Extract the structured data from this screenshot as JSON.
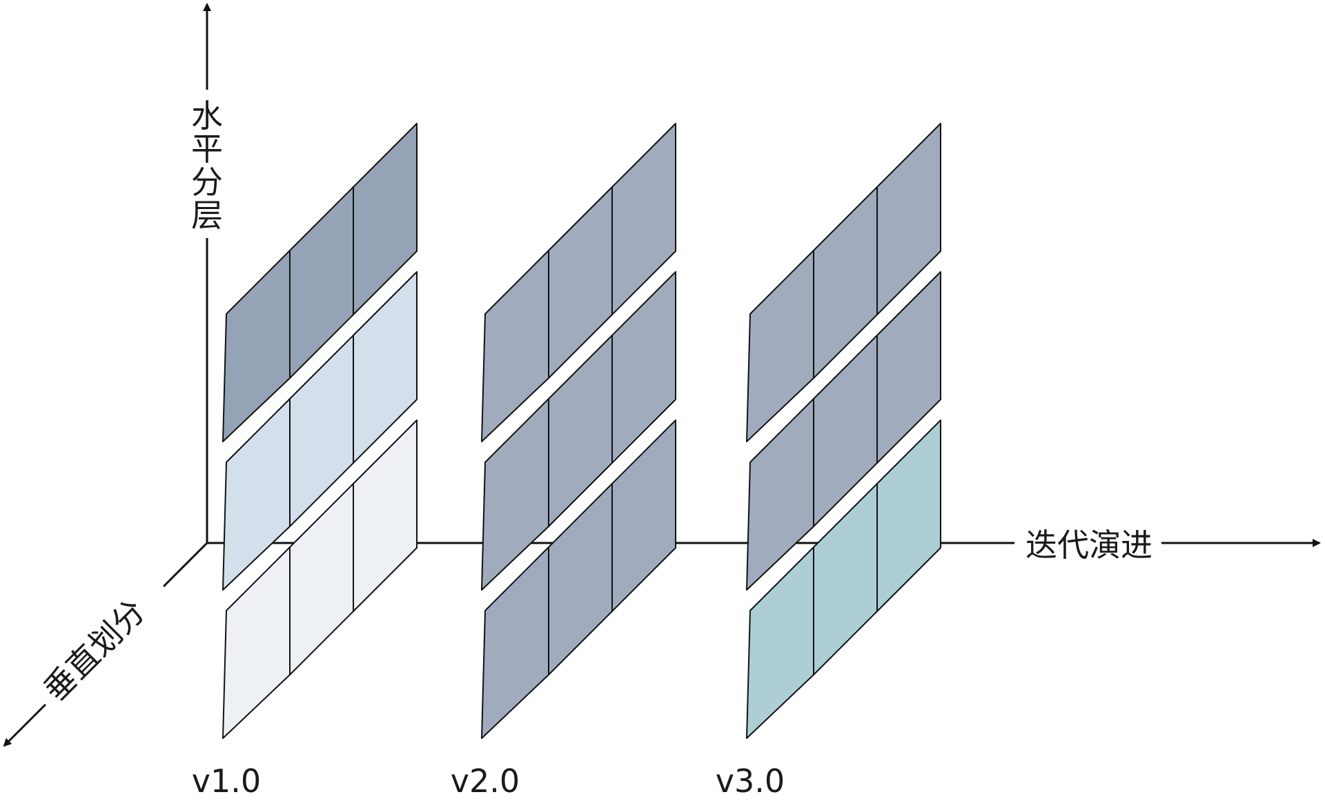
{
  "axes": {
    "vertical_label": [
      "水",
      "平",
      "分",
      "层"
    ],
    "horizontal_label": "迭代演进",
    "diagonal_label": "垂直划分"
  },
  "versions": [
    {
      "label": "v1.0",
      "layer_colors": [
        "#95a3b6",
        "#d3dfeb",
        "#edf1f5"
      ]
    },
    {
      "label": "v2.0",
      "layer_colors": [
        "#a0abbe",
        "#a0abbe",
        "#a0abbe"
      ]
    },
    {
      "label": "v3.0",
      "layer_colors": [
        "#a0abbe",
        "#a0abbe",
        "#acced4"
      ]
    }
  ],
  "grid": {
    "columns_per_layer": 3,
    "layers_per_version": 3
  },
  "colors": {
    "stroke": "#111111",
    "axis": "#111111"
  }
}
